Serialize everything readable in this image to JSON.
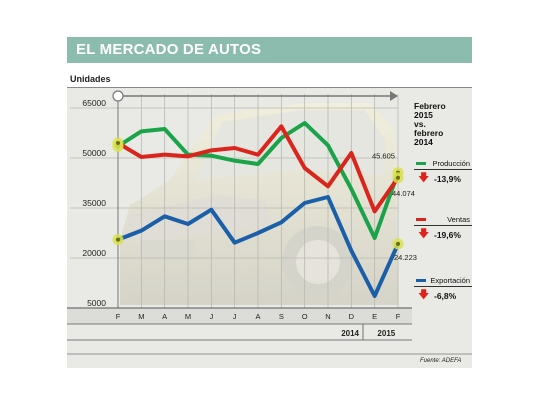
{
  "header": {
    "title": "EL MERCADO DE AUTOS"
  },
  "source": "Fuente: ADEFA",
  "side": {
    "heading": [
      "Febrero",
      "2015",
      "vs.",
      "febrero",
      "2014"
    ]
  },
  "legend": [
    {
      "name": "Producción",
      "change": "-13,9%",
      "color": "#1aa349"
    },
    {
      "name": "Ventas",
      "change": "-19,6%",
      "color": "#d9251c"
    },
    {
      "name": "Exportación",
      "change": "-6,8%",
      "color": "#1a5fa8"
    }
  ],
  "colors": {
    "header": "#8bbcae",
    "panel": "#e9e9e6",
    "highlight": "#d8e24a"
  },
  "chart_data": {
    "type": "line",
    "ylabel": "Unidades",
    "ylim": [
      5000,
      65000
    ],
    "yticks": [
      "65000",
      "50000",
      "35000",
      "20000",
      "5000"
    ],
    "ytick_values": [
      65000,
      50000,
      35000,
      20000,
      5000
    ],
    "categories": [
      "F",
      "M",
      "A",
      "M",
      "J",
      "J",
      "A",
      "S",
      "O",
      "N",
      "D",
      "E",
      "F"
    ],
    "year_labels": [
      "2014",
      "2015"
    ],
    "grid": true,
    "series": [
      {
        "name": "Producción",
        "color": "#1aa349",
        "values": [
          53500,
          58000,
          58700,
          51000,
          50700,
          49200,
          48200,
          56000,
          60500,
          53800,
          40700,
          26000,
          45605
        ]
      },
      {
        "name": "Ventas",
        "color": "#d9251c",
        "values": [
          54500,
          50300,
          51000,
          50500,
          52300,
          53000,
          51000,
          59500,
          47000,
          41500,
          51500,
          34000,
          44074
        ]
      },
      {
        "name": "Exportación",
        "color": "#1a5fa8",
        "values": [
          25500,
          28200,
          32500,
          30200,
          34500,
          24600,
          27500,
          30700,
          36500,
          38300,
          22200,
          8600,
          24223
        ]
      }
    ],
    "annotations": [
      {
        "text": "45.605",
        "series": 0,
        "index": 12
      },
      {
        "text": "44.074",
        "series": 1,
        "index": 12
      },
      {
        "text": "24.223",
        "series": 2,
        "index": 12
      }
    ]
  }
}
